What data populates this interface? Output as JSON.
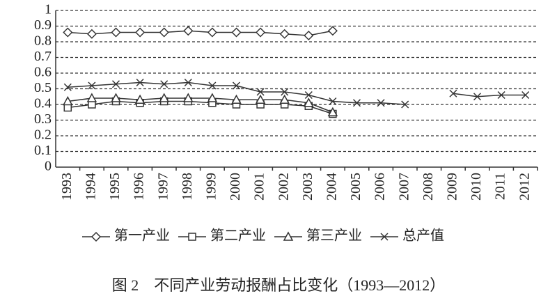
{
  "chart_data": {
    "type": "line",
    "title": "图 2　不同产业劳动报酬占比变化（1993—2012）",
    "categories": [
      "1993",
      "1994",
      "1995",
      "1996",
      "1997",
      "1998",
      "1999",
      "2000",
      "2001",
      "2002",
      "2003",
      "2004",
      "2005",
      "2006",
      "2007",
      "2008",
      "2009",
      "2010",
      "2011",
      "2012"
    ],
    "series": [
      {
        "name": "第一产业",
        "color": "#333333",
        "marker": "diamond",
        "values": [
          0.86,
          0.85,
          0.86,
          0.86,
          0.86,
          0.87,
          0.86,
          0.86,
          0.86,
          0.85,
          0.84,
          0.87,
          null,
          null,
          null,
          null,
          null,
          null,
          null,
          null
        ]
      },
      {
        "name": "第二产业",
        "color": "#333333",
        "marker": "square",
        "values": [
          0.38,
          0.4,
          0.42,
          0.41,
          0.42,
          0.42,
          0.41,
          0.4,
          0.4,
          0.4,
          0.39,
          0.34,
          null,
          null,
          null,
          null,
          null,
          null,
          null,
          null
        ]
      },
      {
        "name": "第三产业",
        "color": "#333333",
        "marker": "triangle",
        "values": [
          0.42,
          0.44,
          0.44,
          0.43,
          0.44,
          0.44,
          0.44,
          0.43,
          0.43,
          0.43,
          0.41,
          0.35,
          null,
          null,
          null,
          null,
          null,
          null,
          null,
          null
        ]
      },
      {
        "name": "总产值",
        "color": "#333333",
        "marker": "cross",
        "values": [
          0.51,
          0.52,
          0.53,
          0.54,
          0.53,
          0.54,
          0.52,
          0.52,
          0.48,
          0.48,
          0.46,
          0.42,
          0.41,
          0.41,
          0.4,
          null,
          0.47,
          0.45,
          0.46,
          0.46
        ]
      }
    ],
    "ylim": [
      0,
      1
    ],
    "yticks": [
      0,
      0.1,
      0.2,
      0.3,
      0.4,
      0.5,
      0.6,
      0.7,
      0.8,
      0.9,
      1
    ],
    "grid": true
  }
}
